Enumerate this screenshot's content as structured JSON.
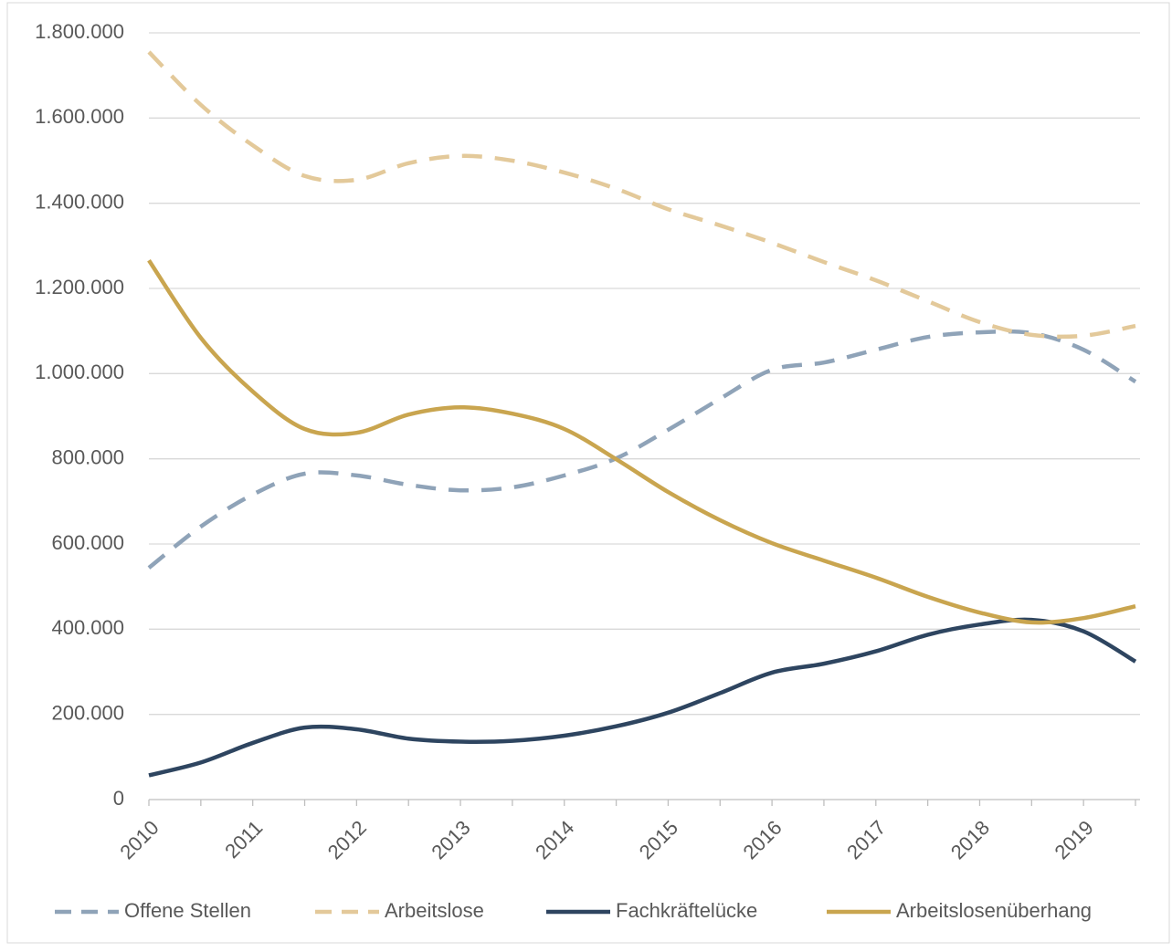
{
  "chart_data": {
    "type": "line",
    "categories": [
      "2010",
      null,
      "2011",
      null,
      "2012",
      null,
      "2013",
      null,
      "2014",
      null,
      "2015",
      null,
      "2016",
      null,
      "2017",
      null,
      "2018",
      null,
      "2019",
      null
    ],
    "series": [
      {
        "name": "Offene Stellen",
        "color": "#8fa3b8",
        "dashed": true,
        "values": [
          544000,
          641000,
          716000,
          765000,
          761000,
          739000,
          726000,
          733000,
          761000,
          801000,
          868000,
          941000,
          1009000,
          1026000,
          1056000,
          1086000,
          1097000,
          1095000,
          1056000,
          981000
        ]
      },
      {
        "name": "Arbeitslose",
        "color": "#e3c99a",
        "dashed": true,
        "values": [
          1755000,
          1631000,
          1536000,
          1464000,
          1455000,
          1494000,
          1511000,
          1500000,
          1472000,
          1434000,
          1386000,
          1348000,
          1307000,
          1262000,
          1219000,
          1170000,
          1121000,
          1091000,
          1089000,
          1112000
        ]
      },
      {
        "name": "Fachkräftelücke",
        "color": "#2e4560",
        "dashed": false,
        "values": [
          57000,
          87000,
          133000,
          169000,
          165000,
          143000,
          136000,
          138000,
          150000,
          172000,
          204000,
          250000,
          298000,
          319000,
          348000,
          387000,
          411000,
          422000,
          395000,
          324000
        ]
      },
      {
        "name": "Arbeitslosenüberhang",
        "color": "#c9a54f",
        "dashed": false,
        "values": [
          1266000,
          1084000,
          958000,
          870000,
          861000,
          904000,
          921000,
          906000,
          870000,
          799000,
          722000,
          656000,
          602000,
          561000,
          521000,
          476000,
          439000,
          416000,
          426000,
          454000
        ]
      }
    ],
    "ylim": [
      0,
      1800000
    ],
    "yticks": [
      0,
      {
        "value": 200000,
        "label": "200.000"
      },
      {
        "value": 400000,
        "label": "400.000"
      },
      {
        "value": 600000,
        "label": "600.000"
      },
      {
        "value": 800000,
        "label": "800.000"
      },
      {
        "value": 1000000,
        "label": "1.000.000"
      },
      {
        "value": 1200000,
        "label": "1.200.000"
      },
      {
        "value": 1400000,
        "label": "1.400.000"
      },
      {
        "value": 1600000,
        "label": "1.600.000"
      },
      {
        "value": 1800000,
        "label": "1.800.000"
      }
    ],
    "grid": true,
    "legend": "bottom"
  }
}
